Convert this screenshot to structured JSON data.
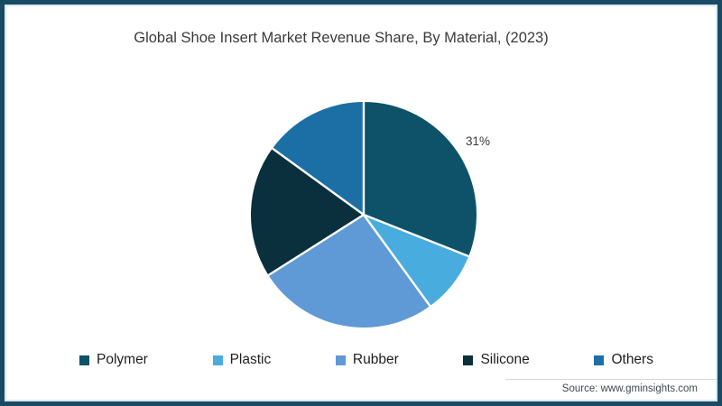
{
  "chart_data": {
    "type": "pie",
    "title": "Global Shoe Insert Market Revenue Share, By Material, (2023)",
    "categories": [
      "Polymer",
      "Plastic",
      "Rubber",
      "Silicone",
      "Others"
    ],
    "values": [
      31,
      9,
      26,
      19,
      15
    ],
    "unit": "%",
    "colors": [
      "#0e5269",
      "#49acde",
      "#5f9ad6",
      "#0a2f3d",
      "#1b6fa5"
    ],
    "start_angle_deg": 0,
    "direction": "clockwise",
    "separator_color": "#ffffff",
    "legend_position": "bottom",
    "annotations": [
      {
        "text": "31%",
        "category": "Polymer",
        "position": "outside-upper-right"
      }
    ]
  },
  "footer": {
    "source": "Source: www.gminsights.com"
  }
}
